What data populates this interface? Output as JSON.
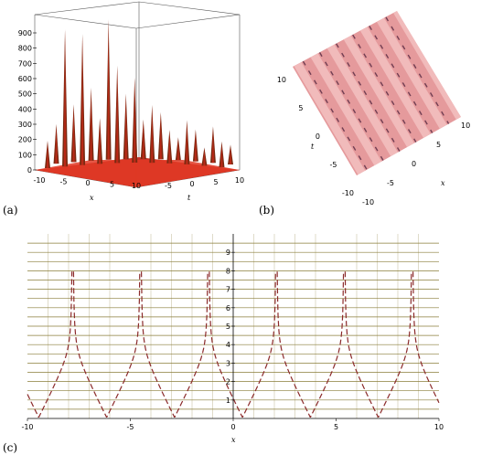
{
  "chart_data": [
    {
      "panel": "(a)",
      "type": "surface3d",
      "xlabel": "x",
      "ylabel": "t",
      "zticks": [
        "0",
        "100",
        "200",
        "300",
        "400",
        "500",
        "600",
        "700",
        "800",
        "900"
      ],
      "xticks": [
        "-10",
        "-5",
        "0",
        "5",
        "10"
      ],
      "tticks": [
        "-5",
        "0",
        "5",
        "10"
      ],
      "zlim": [
        0,
        1000
      ],
      "colors": {
        "surface": "#d42a1a",
        "spike": "#7a2a12",
        "box": "#555555"
      },
      "spike_heights": [
        180,
        260,
        900,
        380,
        860,
        480,
        300,
        920,
        640,
        430,
        560,
        260,
        380,
        310,
        220,
        150,
        290,
        210,
        120,
        240,
        170,
        130
      ]
    },
    {
      "panel": "(b)",
      "type": "density",
      "xlabel": "x",
      "ylabel": "t",
      "xticks": [
        "-10",
        "-5",
        "0",
        "5",
        "10"
      ],
      "tticks": [
        "-10",
        "-5",
        "0",
        "5",
        "10"
      ],
      "colors": {
        "bg": "#e59a9c",
        "light": "#f4c3c4",
        "dark": "#4a1f3a"
      },
      "stripe_count": 6
    },
    {
      "panel": "(c)",
      "type": "line",
      "xlabel": "x",
      "xlim": [
        -10,
        10
      ],
      "ylim": [
        0,
        10
      ],
      "xticks": [
        "-10",
        "-5",
        "0",
        "5",
        "10"
      ],
      "yticks": [
        "1",
        "2",
        "3",
        "4",
        "5",
        "6",
        "7",
        "8",
        "9"
      ],
      "grid": true,
      "colors": {
        "line": "#8b2a2a",
        "grid": "#8a7e3a",
        "bg": "#ffffff"
      },
      "series": [
        {
          "style": "dashed",
          "period": 3.3,
          "x_minima": [
            -9.45,
            -6.15,
            -2.85,
            0.45,
            3.75,
            7.05
          ],
          "x_poles": [
            -7.8,
            -4.5,
            -1.2,
            2.1,
            5.4,
            8.7
          ]
        }
      ]
    }
  ],
  "labels": {
    "a": "(a)",
    "b": "(b)",
    "c": "(c)"
  }
}
